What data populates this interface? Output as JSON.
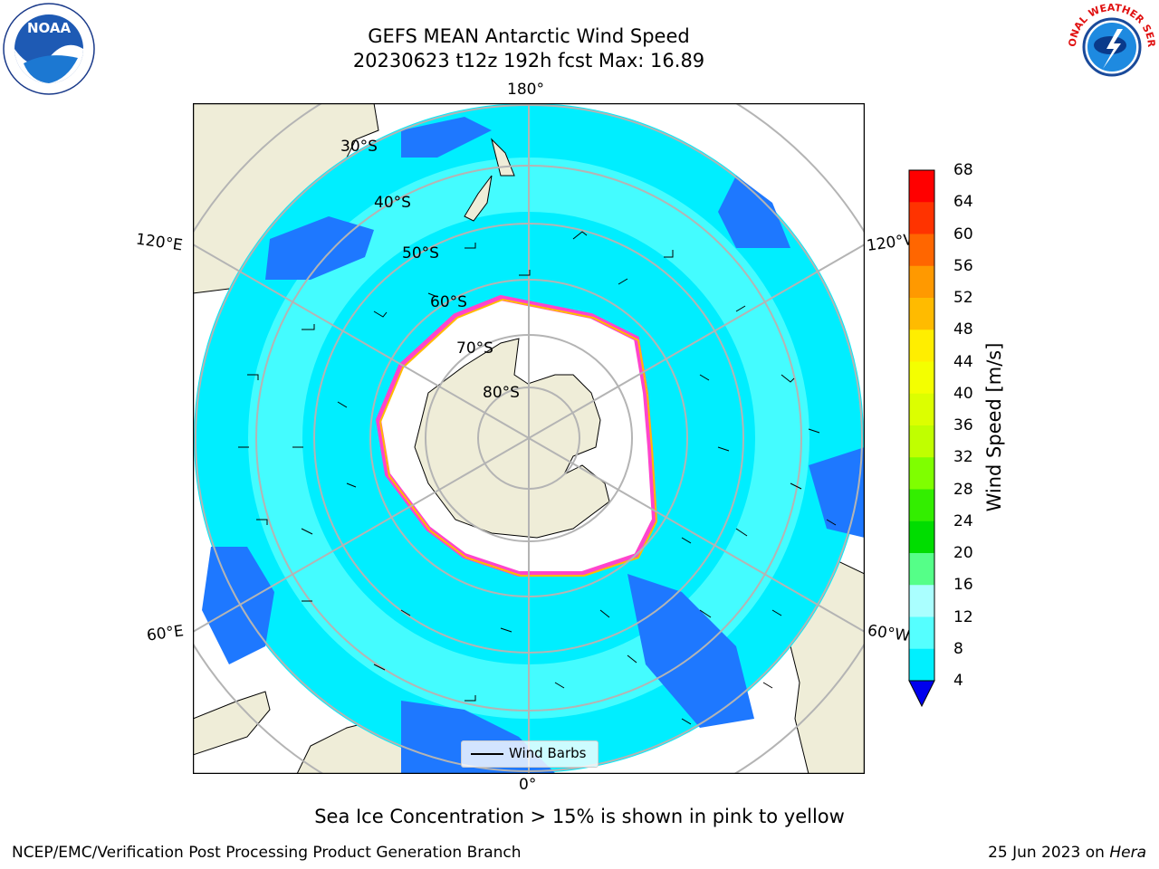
{
  "title_line1": "GEFS MEAN Antarctic Wind Speed",
  "title_line2": "20230623 t12z 192h fcst   Max: 16.89",
  "lon_labels": {
    "top": "180°",
    "bottom": "0°",
    "left_upper": "120°E",
    "left_lower": "60°E",
    "right_upper": "120°W",
    "right_lower": "60°W"
  },
  "lat_labels": [
    "30°S",
    "40°S",
    "50°S",
    "60°S",
    "70°S",
    "80°S"
  ],
  "colorbar": {
    "label": "Wind Speed [m/s]",
    "ticks": [
      "68",
      "64",
      "60",
      "56",
      "52",
      "48",
      "44",
      "40",
      "36",
      "32",
      "28",
      "24",
      "20",
      "16",
      "12",
      "8",
      "4"
    ],
    "colors": [
      "#ff0000",
      "#ff3300",
      "#ff6600",
      "#ff9900",
      "#ffbb00",
      "#ffee00",
      "#f4ff00",
      "#dcff00",
      "#c0ff00",
      "#7fff00",
      "#33ee00",
      "#00dd00",
      "#55ff88",
      "#aaffff",
      "#55ffff",
      "#00f0ff",
      "#0077ff"
    ],
    "extend_color": "#0000ee"
  },
  "legend": {
    "label": "Wind Barbs"
  },
  "ice_note": "Sea Ice Concentration > 15% is shown in pink to yellow",
  "footer_left": "NCEP/EMC/Verification Post Processing Product Generation Branch",
  "footer_right_prefix": "25 Jun 2023 on ",
  "footer_right_host": "Hera",
  "logos": {
    "noaa_text": "NOAA",
    "nws_text": "NATIONAL WEATHER SERVICE"
  },
  "map_colors": {
    "land": "#efedd8",
    "ocean": "#00eeff",
    "light": "#55ffff",
    "dark": "#1e78ff",
    "ice": "#ffffff",
    "ice_edge": "#ff44cc"
  }
}
